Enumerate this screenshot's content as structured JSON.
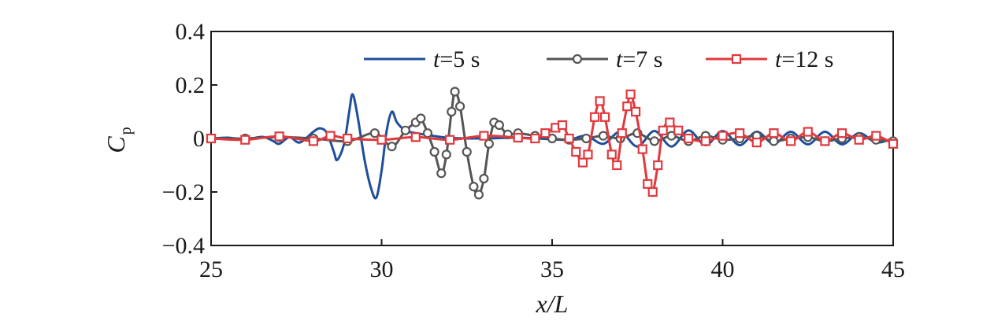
{
  "chart_data": {
    "type": "line",
    "title": "",
    "xlabel": "x/L",
    "ylabel": "C_p",
    "ylabel_main": "C",
    "ylabel_sub": "p",
    "xlim": [
      25,
      45
    ],
    "ylim": [
      -0.4,
      0.4
    ],
    "xticks": [
      25,
      30,
      35,
      40,
      45
    ],
    "yticks": [
      0.4,
      0.2,
      0,
      -0.2,
      -0.4
    ],
    "xtick_labels": [
      "25",
      "30",
      "35",
      "40",
      "45"
    ],
    "ytick_labels": [
      "0.4",
      "0.2",
      "0",
      "−0.2",
      "−0.4"
    ],
    "grid": false,
    "legend_position": "top",
    "series": [
      {
        "name": "t=5 s",
        "legend_var": "t",
        "legend_rest": "=5 s",
        "color": "#1f4e9c",
        "marker": "none",
        "points": [
          [
            25.0,
            0.0
          ],
          [
            25.5,
            0.003
          ],
          [
            26.0,
            -0.004
          ],
          [
            26.5,
            0.006
          ],
          [
            26.8,
            -0.008
          ],
          [
            27.0,
            -0.02
          ],
          [
            27.3,
            0.005
          ],
          [
            27.6,
            -0.015
          ],
          [
            28.0,
            0.025
          ],
          [
            28.2,
            0.038
          ],
          [
            28.4,
            0.02
          ],
          [
            28.6,
            -0.05
          ],
          [
            28.7,
            -0.08
          ],
          [
            28.9,
            -0.02
          ],
          [
            29.05,
            0.1
          ],
          [
            29.15,
            0.165
          ],
          [
            29.3,
            0.08
          ],
          [
            29.5,
            -0.08
          ],
          [
            29.7,
            -0.19
          ],
          [
            29.85,
            -0.22
          ],
          [
            30.0,
            -0.12
          ],
          [
            30.15,
            0.03
          ],
          [
            30.3,
            0.1
          ],
          [
            30.45,
            0.06
          ],
          [
            30.7,
            0.03
          ],
          [
            31.0,
            0.02
          ],
          [
            31.5,
            0.01
          ],
          [
            32.0,
            0.002
          ],
          [
            33.0,
            0.0
          ],
          [
            34.0,
            0.003
          ],
          [
            35.0,
            -0.003
          ],
          [
            35.5,
            -0.005
          ],
          [
            36.0,
            0.01
          ],
          [
            36.5,
            -0.02
          ],
          [
            37.0,
            0.025
          ],
          [
            37.5,
            -0.03
          ],
          [
            38.0,
            0.028
          ],
          [
            38.5,
            -0.03
          ],
          [
            39.0,
            0.03
          ],
          [
            39.5,
            -0.025
          ],
          [
            40.0,
            0.028
          ],
          [
            40.5,
            -0.025
          ],
          [
            41.0,
            0.025
          ],
          [
            41.5,
            -0.02
          ],
          [
            42.0,
            0.025
          ],
          [
            42.5,
            -0.022
          ],
          [
            43.0,
            0.025
          ],
          [
            43.5,
            -0.022
          ],
          [
            44.0,
            0.02
          ],
          [
            44.5,
            -0.015
          ],
          [
            45.0,
            0.0
          ]
        ]
      },
      {
        "name": "t=7 s",
        "legend_var": "t",
        "legend_rest": "=7 s",
        "color": "#555555",
        "marker": "circle",
        "points": [
          [
            25.0,
            0.0
          ],
          [
            26.0,
            0.0
          ],
          [
            27.0,
            0.005
          ],
          [
            28.0,
            0.0
          ],
          [
            29.0,
            -0.01
          ],
          [
            29.8,
            0.02
          ],
          [
            30.3,
            -0.03
          ],
          [
            30.7,
            0.03
          ],
          [
            31.0,
            0.06
          ],
          [
            31.15,
            0.075
          ],
          [
            31.35,
            0.02
          ],
          [
            31.55,
            -0.05
          ],
          [
            31.75,
            -0.13
          ],
          [
            31.9,
            -0.06
          ],
          [
            32.05,
            0.1
          ],
          [
            32.15,
            0.175
          ],
          [
            32.3,
            0.12
          ],
          [
            32.5,
            -0.05
          ],
          [
            32.7,
            -0.18
          ],
          [
            32.85,
            -0.21
          ],
          [
            33.0,
            -0.15
          ],
          [
            33.15,
            -0.02
          ],
          [
            33.3,
            0.06
          ],
          [
            33.45,
            0.05
          ],
          [
            33.7,
            0.015
          ],
          [
            34.0,
            0.02
          ],
          [
            34.5,
            0.01
          ],
          [
            35.0,
            0.0
          ],
          [
            35.5,
            -0.005
          ],
          [
            36.0,
            0.0
          ],
          [
            36.5,
            0.01
          ],
          [
            37.0,
            0.0
          ],
          [
            37.5,
            0.02
          ],
          [
            38.0,
            -0.01
          ],
          [
            38.5,
            0.01
          ],
          [
            39.0,
            -0.01
          ],
          [
            39.5,
            0.01
          ],
          [
            40.0,
            -0.005
          ],
          [
            40.5,
            0.0
          ],
          [
            41.0,
            0.01
          ],
          [
            41.5,
            -0.01
          ],
          [
            42.0,
            0.0
          ],
          [
            42.5,
            0.005
          ],
          [
            43.0,
            -0.01
          ],
          [
            43.5,
            0.0
          ],
          [
            44.0,
            0.005
          ],
          [
            44.5,
            -0.005
          ],
          [
            45.0,
            -0.01
          ]
        ]
      },
      {
        "name": "t=12 s",
        "legend_var": "t",
        "legend_rest": "=12 s",
        "color": "#e0393e",
        "marker": "square",
        "points": [
          [
            25.0,
            0.0
          ],
          [
            26.0,
            -0.005
          ],
          [
            27.0,
            0.008
          ],
          [
            28.0,
            -0.01
          ],
          [
            28.5,
            0.01
          ],
          [
            29.0,
            0.0
          ],
          [
            30.0,
            -0.005
          ],
          [
            31.0,
            0.005
          ],
          [
            32.0,
            -0.005
          ],
          [
            33.0,
            0.01
          ],
          [
            34.0,
            0.003
          ],
          [
            34.5,
            0.0
          ],
          [
            34.8,
            0.02
          ],
          [
            35.1,
            0.04
          ],
          [
            35.3,
            0.05
          ],
          [
            35.5,
            0.0
          ],
          [
            35.7,
            -0.05
          ],
          [
            35.9,
            -0.09
          ],
          [
            36.05,
            -0.06
          ],
          [
            36.25,
            0.08
          ],
          [
            36.4,
            0.14
          ],
          [
            36.55,
            0.08
          ],
          [
            36.75,
            -0.06
          ],
          [
            36.9,
            -0.1
          ],
          [
            37.05,
            0.02
          ],
          [
            37.2,
            0.12
          ],
          [
            37.3,
            0.165
          ],
          [
            37.45,
            0.1
          ],
          [
            37.65,
            -0.04
          ],
          [
            37.8,
            -0.17
          ],
          [
            37.95,
            -0.2
          ],
          [
            38.1,
            -0.1
          ],
          [
            38.25,
            0.03
          ],
          [
            38.45,
            0.06
          ],
          [
            38.7,
            0.03
          ],
          [
            39.0,
            0.0
          ],
          [
            39.5,
            -0.01
          ],
          [
            40.0,
            0.01
          ],
          [
            40.5,
            0.02
          ],
          [
            41.0,
            -0.015
          ],
          [
            41.5,
            0.02
          ],
          [
            42.0,
            -0.01
          ],
          [
            42.5,
            0.025
          ],
          [
            43.0,
            -0.01
          ],
          [
            43.5,
            0.02
          ],
          [
            44.0,
            -0.005
          ],
          [
            44.5,
            0.01
          ],
          [
            45.0,
            -0.02
          ]
        ]
      }
    ]
  }
}
